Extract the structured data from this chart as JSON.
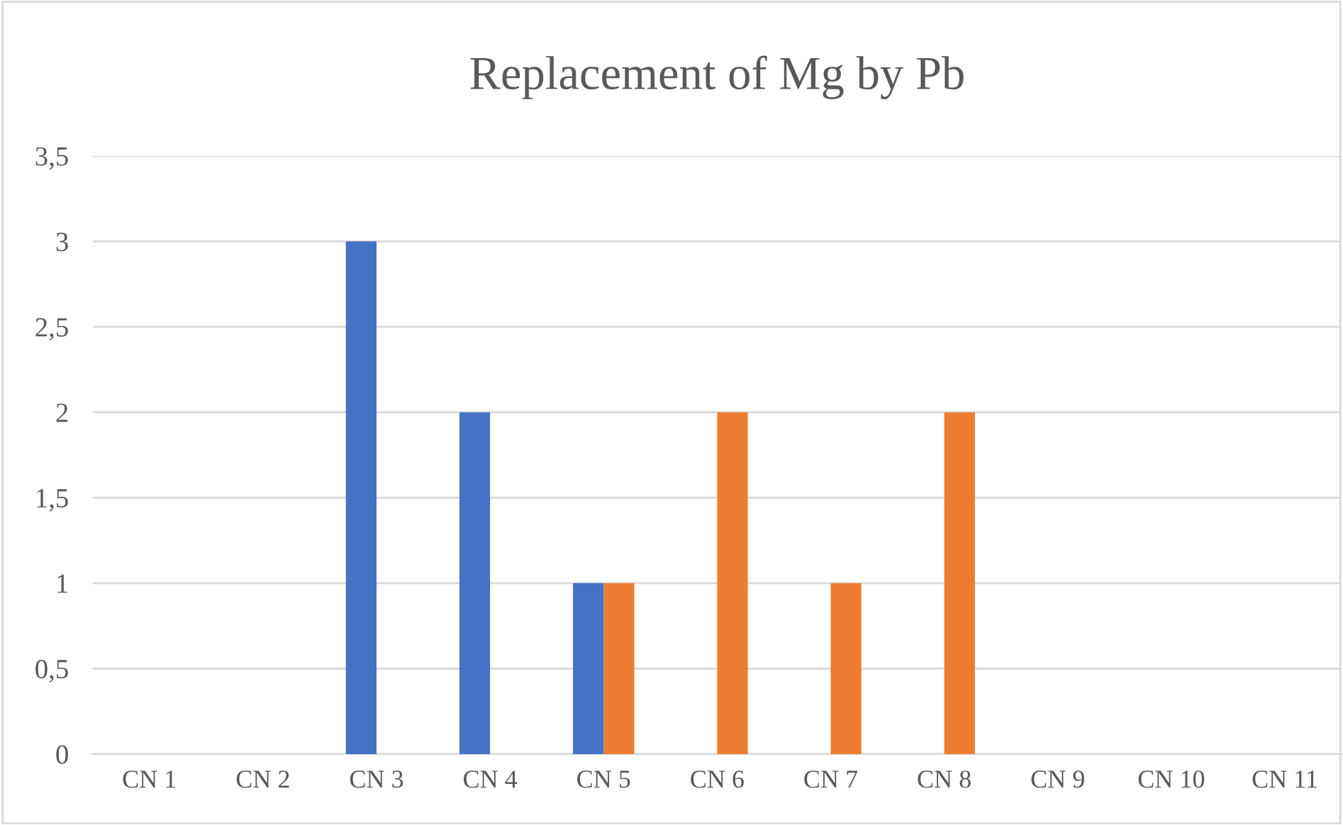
{
  "chart_data": {
    "type": "bar",
    "title": "Replacement of Mg by Pb",
    "categories": [
      "CN 1",
      "CN 2",
      "CN 3",
      "CN 4",
      "CN 5",
      "CN 6",
      "CN 7",
      "CN 8",
      "CN 9",
      "CN 10",
      "CN 11"
    ],
    "series": [
      {
        "color": "#4472c4",
        "values": [
          0,
          0,
          3,
          2,
          1,
          0,
          0,
          0,
          0,
          0,
          0
        ]
      },
      {
        "color": "#ed7d31",
        "values": [
          0,
          0,
          0,
          0,
          1,
          2,
          1,
          2,
          0,
          0,
          0
        ]
      }
    ],
    "ylim": [
      0,
      3.5
    ],
    "yticks": [
      0,
      {
        "value": 0.5,
        "label": "0,5"
      },
      1,
      {
        "value": 1.5,
        "label": "1,5"
      },
      2,
      {
        "value": 2.5,
        "label": "2,5"
      },
      3,
      {
        "value": 3.5,
        "label": "3,5"
      }
    ],
    "grid": "y",
    "legend": false
  }
}
